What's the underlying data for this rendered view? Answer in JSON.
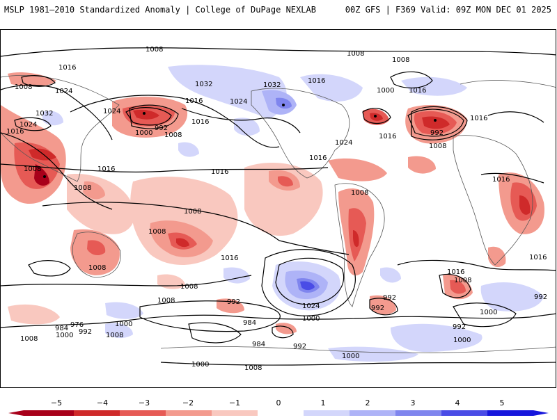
{
  "header": {
    "left_title": "MSLP 1981–2010 Standardized Anomaly | College of DuPage NEXLAB",
    "right_title": "00Z GFS | F369 Valid: 09Z MON DEC 01 2025"
  },
  "colors": {
    "neg5": "#a8001a",
    "neg4": "#cf2a2a",
    "neg3": "#e65a55",
    "neg2": "#f39a8e",
    "neg1": "#f9c8bf",
    "zero": "#ffffff",
    "pos1": "#d3d6fb",
    "pos2": "#aeb3f7",
    "pos3": "#7f85ee",
    "pos4": "#4a4ce6",
    "pos5": "#1616dc",
    "contour": "#000000",
    "border": "#555555"
  },
  "colorbar": {
    "ticks": [
      "−5",
      "−4",
      "−3",
      "−2",
      "−1",
      "0",
      "1",
      "2",
      "3",
      "4",
      "5"
    ]
  },
  "isobar_labels": [
    "1008",
    "1016",
    "1008",
    "1024",
    "1032",
    "1024",
    "1016",
    "1008",
    "1024",
    "1032",
    "1016",
    "992",
    "1000",
    "1016",
    "1024",
    "1032",
    "1016",
    "1008",
    "1008",
    "1000",
    "1016",
    "992",
    "1008",
    "1016",
    "1016",
    "1008",
    "1016",
    "1008",
    "1016",
    "1024",
    "1016",
    "1008",
    "1016",
    "1008",
    "1008",
    "1016",
    "1008",
    "1008",
    "992",
    "1008",
    "1000",
    "1024",
    "992",
    "1000",
    "984",
    "992",
    "1016",
    "1008",
    "1000",
    "992",
    "1000",
    "1008",
    "984",
    "976",
    "1000",
    "1008",
    "1000",
    "992",
    "984",
    "992",
    "1000",
    "1008",
    "1016",
    "992"
  ]
}
